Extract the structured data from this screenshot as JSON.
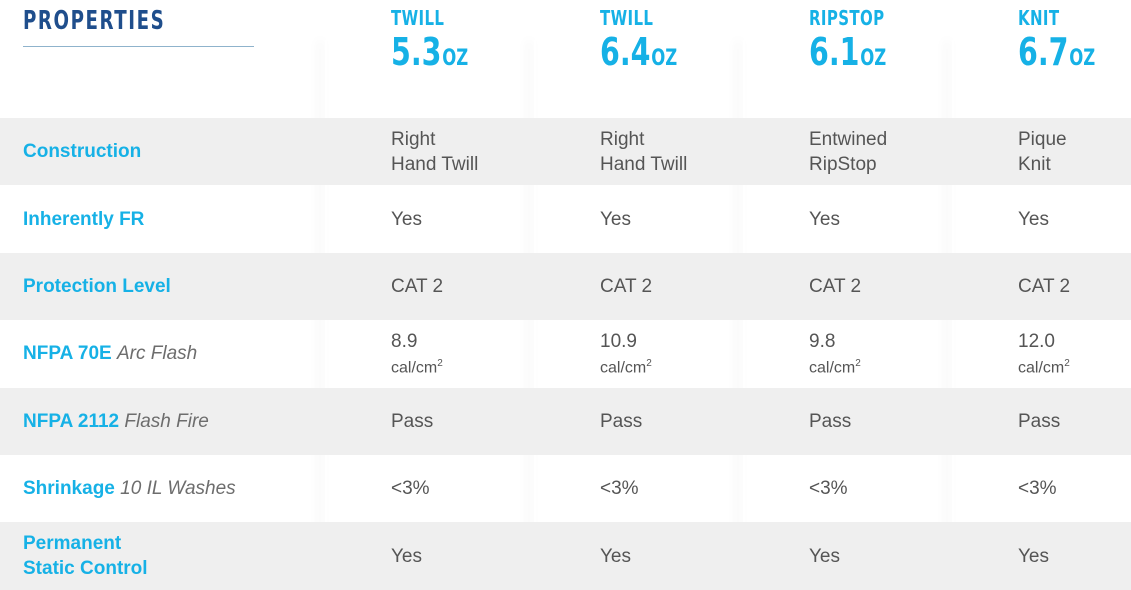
{
  "header": {
    "title": "PROPERTIES"
  },
  "fabrics": [
    {
      "type": "TWILL",
      "weight": "5.3",
      "unit": "OZ"
    },
    {
      "type": "TWILL",
      "weight": "6.4",
      "unit": "OZ"
    },
    {
      "type": "RIPSTOP",
      "weight": "6.1",
      "unit": "OZ"
    },
    {
      "type": "KNIT",
      "weight": "6.7",
      "unit": "OZ"
    }
  ],
  "rows": [
    {
      "label": "Construction",
      "sub": "",
      "values": [
        [
          "Right",
          "Hand Twill"
        ],
        [
          "Right",
          "Hand Twill"
        ],
        [
          "Entwined",
          "RipStop"
        ],
        [
          "Pique",
          "Knit"
        ]
      ]
    },
    {
      "label": "Inherently FR",
      "sub": "",
      "values": [
        "Yes",
        "Yes",
        "Yes",
        "Yes"
      ]
    },
    {
      "label": "Protection Level",
      "sub": "",
      "values": [
        "CAT 2",
        "CAT 2",
        "CAT 2",
        "CAT 2"
      ]
    },
    {
      "label": "NFPA 70E",
      "sub": "Arc Flash",
      "values": [
        [
          "8.9",
          "cal/cm"
        ],
        [
          "10.9",
          "cal/cm"
        ],
        [
          "9.8",
          "cal/cm"
        ],
        [
          "12.0",
          "cal/cm"
        ]
      ],
      "unit_sup": "2"
    },
    {
      "label": "NFPA 2112",
      "sub": "Flash Fire",
      "values": [
        "Pass",
        "Pass",
        "Pass",
        "Pass"
      ]
    },
    {
      "label": "Shrinkage",
      "sub": "10 IL Washes",
      "values": [
        "<3%",
        "<3%",
        "<3%",
        "<3%"
      ]
    },
    {
      "label": [
        "Permanent",
        "Static Control"
      ],
      "sub": "",
      "values": [
        "Yes",
        "Yes",
        "Yes",
        "Yes"
      ]
    }
  ]
}
